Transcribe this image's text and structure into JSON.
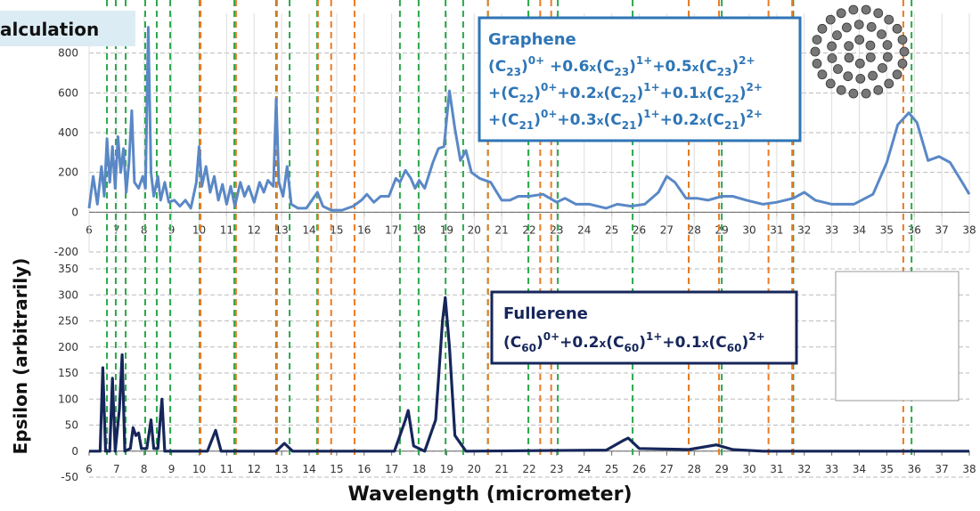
{
  "chart_data": [
    {
      "type": "line",
      "title": "alculation",
      "ylabel": "Epsilon (arbitrarily)",
      "xlim": [
        6,
        38
      ],
      "xticks": [
        6,
        7,
        8,
        9,
        10,
        11,
        12,
        13,
        14,
        15,
        16,
        17,
        18,
        19,
        20,
        21,
        22,
        23,
        24,
        25,
        26,
        27,
        28,
        29,
        30,
        31,
        32,
        33,
        34,
        35,
        36,
        37,
        38
      ],
      "ylim": [
        -200,
        1000
      ],
      "yticks": [
        -200,
        0,
        200,
        400,
        600,
        800
      ],
      "grid": true,
      "xgrid": true,
      "x": [
        6.0,
        6.15,
        6.3,
        6.45,
        6.55,
        6.65,
        6.75,
        6.85,
        6.95,
        7.05,
        7.15,
        7.25,
        7.35,
        7.45,
        7.55,
        7.65,
        7.8,
        7.95,
        8.05,
        8.15,
        8.25,
        8.35,
        8.5,
        8.6,
        8.75,
        8.9,
        9.1,
        9.3,
        9.5,
        9.7,
        9.9,
        10.0,
        10.1,
        10.25,
        10.4,
        10.55,
        10.7,
        10.85,
        11.0,
        11.15,
        11.3,
        11.5,
        11.65,
        11.8,
        12.0,
        12.2,
        12.35,
        12.5,
        12.7,
        12.8,
        12.9,
        13.05,
        13.2,
        13.35,
        13.6,
        13.9,
        14.3,
        14.5,
        14.8,
        15.2,
        15.6,
        15.9,
        16.1,
        16.35,
        16.6,
        16.9,
        17.15,
        17.3,
        17.5,
        17.7,
        17.85,
        18.0,
        18.2,
        18.5,
        18.7,
        18.9,
        19.1,
        19.3,
        19.5,
        19.7,
        19.9,
        20.2,
        20.6,
        21.0,
        21.3,
        21.6,
        22.0,
        22.5,
        23.0,
        23.3,
        23.7,
        24.2,
        24.8,
        25.2,
        25.7,
        26.2,
        26.7,
        27.0,
        27.3,
        27.7,
        28.1,
        28.5,
        29.0,
        29.4,
        29.9,
        30.5,
        31.0,
        31.6,
        32.0,
        32.4,
        33.0,
        33.8,
        34.5,
        35.0,
        35.4,
        35.8,
        36.1,
        36.5,
        36.9,
        37.3,
        37.7,
        38.0
      ],
      "series": [
        {
          "name": "Graphene",
          "color": "#5a88c6",
          "values": [
            20,
            180,
            40,
            230,
            80,
            370,
            150,
            330,
            120,
            380,
            200,
            320,
            100,
            250,
            510,
            150,
            120,
            180,
            120,
            930,
            200,
            80,
            180,
            60,
            150,
            50,
            60,
            30,
            60,
            20,
            150,
            330,
            130,
            230,
            100,
            180,
            60,
            140,
            40,
            130,
            30,
            150,
            80,
            130,
            50,
            150,
            100,
            160,
            130,
            570,
            150,
            80,
            230,
            40,
            20,
            20,
            100,
            30,
            10,
            10,
            30,
            60,
            90,
            50,
            80,
            80,
            170,
            150,
            210,
            170,
            120,
            160,
            120,
            250,
            320,
            330,
            610,
            420,
            260,
            310,
            200,
            170,
            150,
            60,
            60,
            80,
            80,
            90,
            50,
            70,
            40,
            40,
            20,
            40,
            30,
            40,
            100,
            180,
            150,
            70,
            70,
            60,
            80,
            80,
            60,
            40,
            50,
            70,
            100,
            60,
            40,
            40,
            90,
            250,
            440,
            500,
            450,
            260,
            280,
            250,
            160,
            90
          ]
        }
      ],
      "formula": [
        {
          "text": [
            "(C",
            "23",
            ")",
            "0+",
            " +0.6",
            "x",
            "(C",
            "23",
            ")",
            "1+",
            "+0.5",
            "x",
            "(C",
            "23",
            ")",
            "2+"
          ],
          "style": [
            "n",
            "sub",
            "n",
            "sup",
            "n",
            "small",
            "n",
            "sub",
            "n",
            "sup",
            "n",
            "small",
            "n",
            "sub",
            "n",
            "sup"
          ]
        },
        {
          "text": [
            "+(C",
            "22",
            ")",
            "0+",
            "+0.2",
            "x",
            "(C",
            "22",
            ")",
            "1+",
            "+0.1",
            "x",
            "(C",
            "22",
            ")",
            "2+"
          ],
          "style": [
            "n",
            "sub",
            "n",
            "sup",
            "n",
            "small",
            "n",
            "sub",
            "n",
            "sup",
            "n",
            "small",
            "n",
            "sub",
            "n",
            "sup"
          ]
        },
        {
          "text": [
            "+(C",
            "21",
            ")",
            "0+",
            "+0.3",
            "x",
            "(C",
            "21",
            ")",
            "1+",
            "+0.2",
            "x",
            "(C",
            "21",
            ")",
            "2+"
          ],
          "style": [
            "n",
            "sub",
            "n",
            "sup",
            "n",
            "small",
            "n",
            "sub",
            "n",
            "sup",
            "n",
            "small",
            "n",
            "sub",
            "n",
            "sup"
          ]
        }
      ],
      "reference_lines": [
        {
          "color": "#2aa84a",
          "x": [
            6.65,
            6.97,
            7.33,
            8.04,
            8.46,
            8.95,
            10.02,
            11.28,
            12.8,
            13.29,
            14.29,
            17.3,
            17.98,
            18.96,
            19.6,
            20.5,
            21.97,
            23.04,
            25.76,
            27.8,
            29.0,
            31.6,
            35.9
          ]
        },
        {
          "color": "#ec7a24",
          "x": [
            10.05,
            11.34,
            12.83,
            14.32,
            14.8,
            15.65,
            20.5,
            22.4,
            22.8,
            27.8,
            28.9,
            30.7,
            31.56,
            35.6
          ]
        }
      ]
    },
    {
      "type": "line",
      "xlabel": "Wavelength (micrometer)",
      "xlim": [
        6,
        38
      ],
      "xticks": [
        6,
        7,
        8,
        9,
        10,
        11,
        12,
        13,
        14,
        15,
        16,
        17,
        18,
        19,
        20,
        21,
        22,
        23,
        24,
        25,
        26,
        27,
        28,
        29,
        30,
        31,
        32,
        33,
        34,
        35,
        36,
        37,
        38
      ],
      "ylim": [
        -50,
        350
      ],
      "yticks": [
        -50,
        0,
        50,
        100,
        150,
        200,
        250,
        300,
        350
      ],
      "grid": true,
      "xgrid": false,
      "x": [
        6.0,
        6.4,
        6.5,
        6.6,
        6.75,
        6.85,
        6.95,
        7.1,
        7.2,
        7.3,
        7.5,
        7.6,
        7.7,
        7.8,
        7.9,
        8.1,
        8.25,
        8.35,
        8.5,
        8.65,
        8.75,
        9.0,
        10.3,
        10.6,
        10.8,
        12.8,
        13.1,
        13.4,
        17.1,
        17.5,
        17.6,
        17.8,
        18.2,
        18.6,
        18.85,
        18.95,
        19.1,
        19.3,
        19.7,
        24.8,
        25.4,
        25.6,
        26.0,
        27.8,
        28.8,
        29.4,
        30.5,
        38.0
      ],
      "series": [
        {
          "name": "Fullerene",
          "color": "#16265a",
          "values": [
            0,
            0,
            160,
            0,
            0,
            140,
            0,
            80,
            185,
            0,
            5,
            45,
            30,
            35,
            5,
            5,
            60,
            5,
            5,
            100,
            0,
            0,
            0,
            40,
            0,
            0,
            15,
            0,
            0,
            60,
            78,
            10,
            0,
            60,
            250,
            295,
            200,
            30,
            0,
            2,
            20,
            25,
            5,
            3,
            12,
            3,
            0,
            0
          ]
        }
      ],
      "formula": [
        {
          "text": [
            "(C",
            "60",
            ")",
            "0+",
            "+0.2",
            "x",
            "(C",
            "60",
            ")",
            "1+",
            "+0.1",
            "x",
            "(C",
            "60",
            ")",
            "2+"
          ],
          "style": [
            "n",
            "sub",
            "n",
            "sup",
            "n",
            "small",
            "n",
            "sub",
            "n",
            "sup",
            "n",
            "small",
            "n",
            "sub",
            "n",
            "sup"
          ]
        }
      ]
    }
  ]
}
